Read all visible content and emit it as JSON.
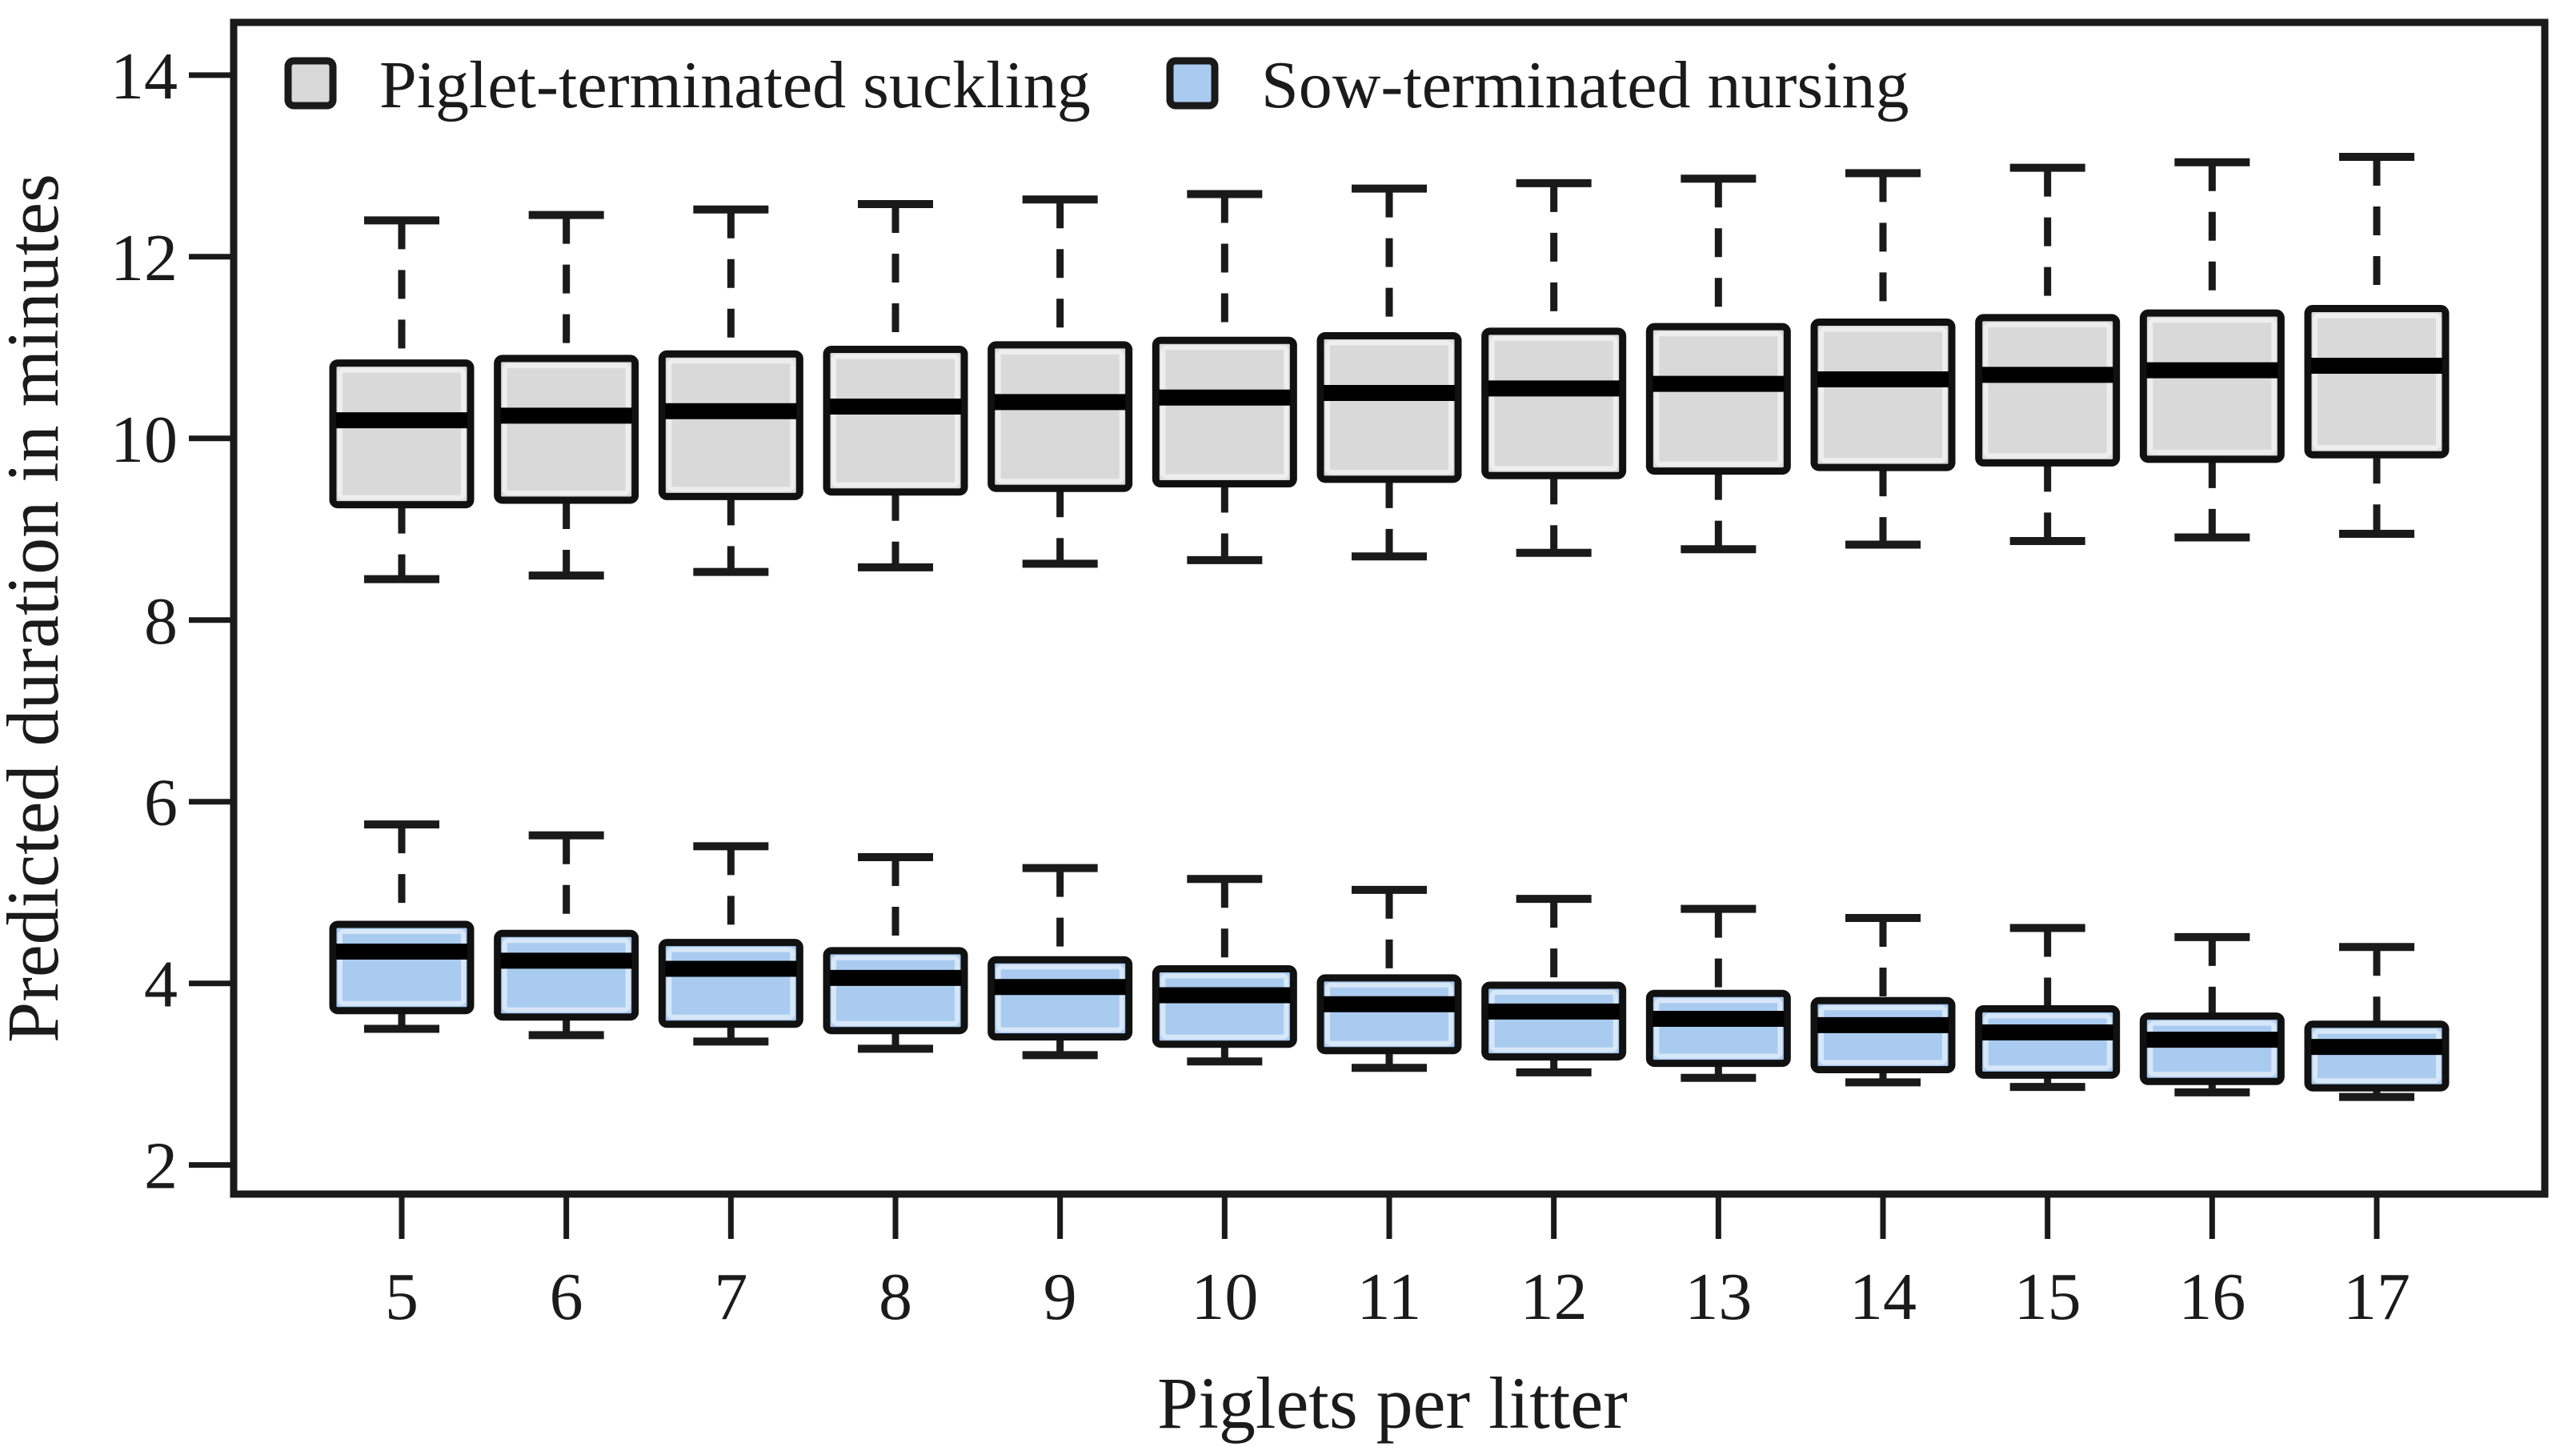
{
  "figure": {
    "background": "#ffffff"
  },
  "chart_data": {
    "type": "boxplot",
    "title": "",
    "xlabel": "Piglets per litter",
    "ylabel": "Predicted duration in minutes",
    "categories": [
      5,
      6,
      7,
      8,
      9,
      10,
      11,
      12,
      13,
      14,
      15,
      16,
      17
    ],
    "y_ticks": [
      2,
      4,
      6,
      8,
      10,
      12,
      14
    ],
    "ylim": [
      1.68,
      14.58
    ],
    "grid": false,
    "legend_position": "top-left-inside",
    "ink_color": "#1a1a1a",
    "median_color": "#000000",
    "series": [
      {
        "key": "piglet-terminated",
        "name": "Piglet-terminated suckling",
        "fill_color": "#d9d9d9",
        "whisker_low": [
          8.45,
          8.49,
          8.53,
          8.58,
          8.62,
          8.66,
          8.7,
          8.74,
          8.78,
          8.83,
          8.87,
          8.91,
          8.95
        ],
        "q1": [
          9.27,
          9.32,
          9.36,
          9.41,
          9.45,
          9.5,
          9.55,
          9.59,
          9.64,
          9.68,
          9.73,
          9.77,
          9.82
        ],
        "median": [
          10.2,
          10.25,
          10.3,
          10.35,
          10.4,
          10.45,
          10.5,
          10.55,
          10.6,
          10.65,
          10.7,
          10.75,
          10.8
        ],
        "q3": [
          10.83,
          10.88,
          10.93,
          10.98,
          11.03,
          11.08,
          11.13,
          11.18,
          11.23,
          11.28,
          11.33,
          11.38,
          11.43
        ],
        "whisker_high": [
          12.4,
          12.46,
          12.52,
          12.58,
          12.63,
          12.69,
          12.75,
          12.81,
          12.86,
          12.92,
          12.98,
          13.04,
          13.1
        ]
      },
      {
        "key": "sow-terminated",
        "name": "Sow-terminated nursing",
        "fill_color": "#a9cbf0",
        "whisker_low": [
          3.5,
          3.43,
          3.36,
          3.28,
          3.21,
          3.14,
          3.07,
          3.02,
          2.96,
          2.91,
          2.86,
          2.8,
          2.75
        ],
        "q1": [
          3.7,
          3.63,
          3.55,
          3.48,
          3.41,
          3.33,
          3.26,
          3.19,
          3.12,
          3.05,
          2.99,
          2.92,
          2.85
        ],
        "median": [
          4.35,
          4.25,
          4.16,
          4.06,
          3.96,
          3.87,
          3.77,
          3.69,
          3.61,
          3.54,
          3.46,
          3.38,
          3.3
        ],
        "q3": [
          4.65,
          4.55,
          4.45,
          4.36,
          4.26,
          4.16,
          4.06,
          3.98,
          3.89,
          3.81,
          3.72,
          3.64,
          3.55
        ],
        "whisker_high": [
          5.75,
          5.63,
          5.51,
          5.39,
          5.27,
          5.15,
          5.03,
          4.93,
          4.82,
          4.72,
          4.61,
          4.51,
          4.4
        ]
      }
    ]
  }
}
